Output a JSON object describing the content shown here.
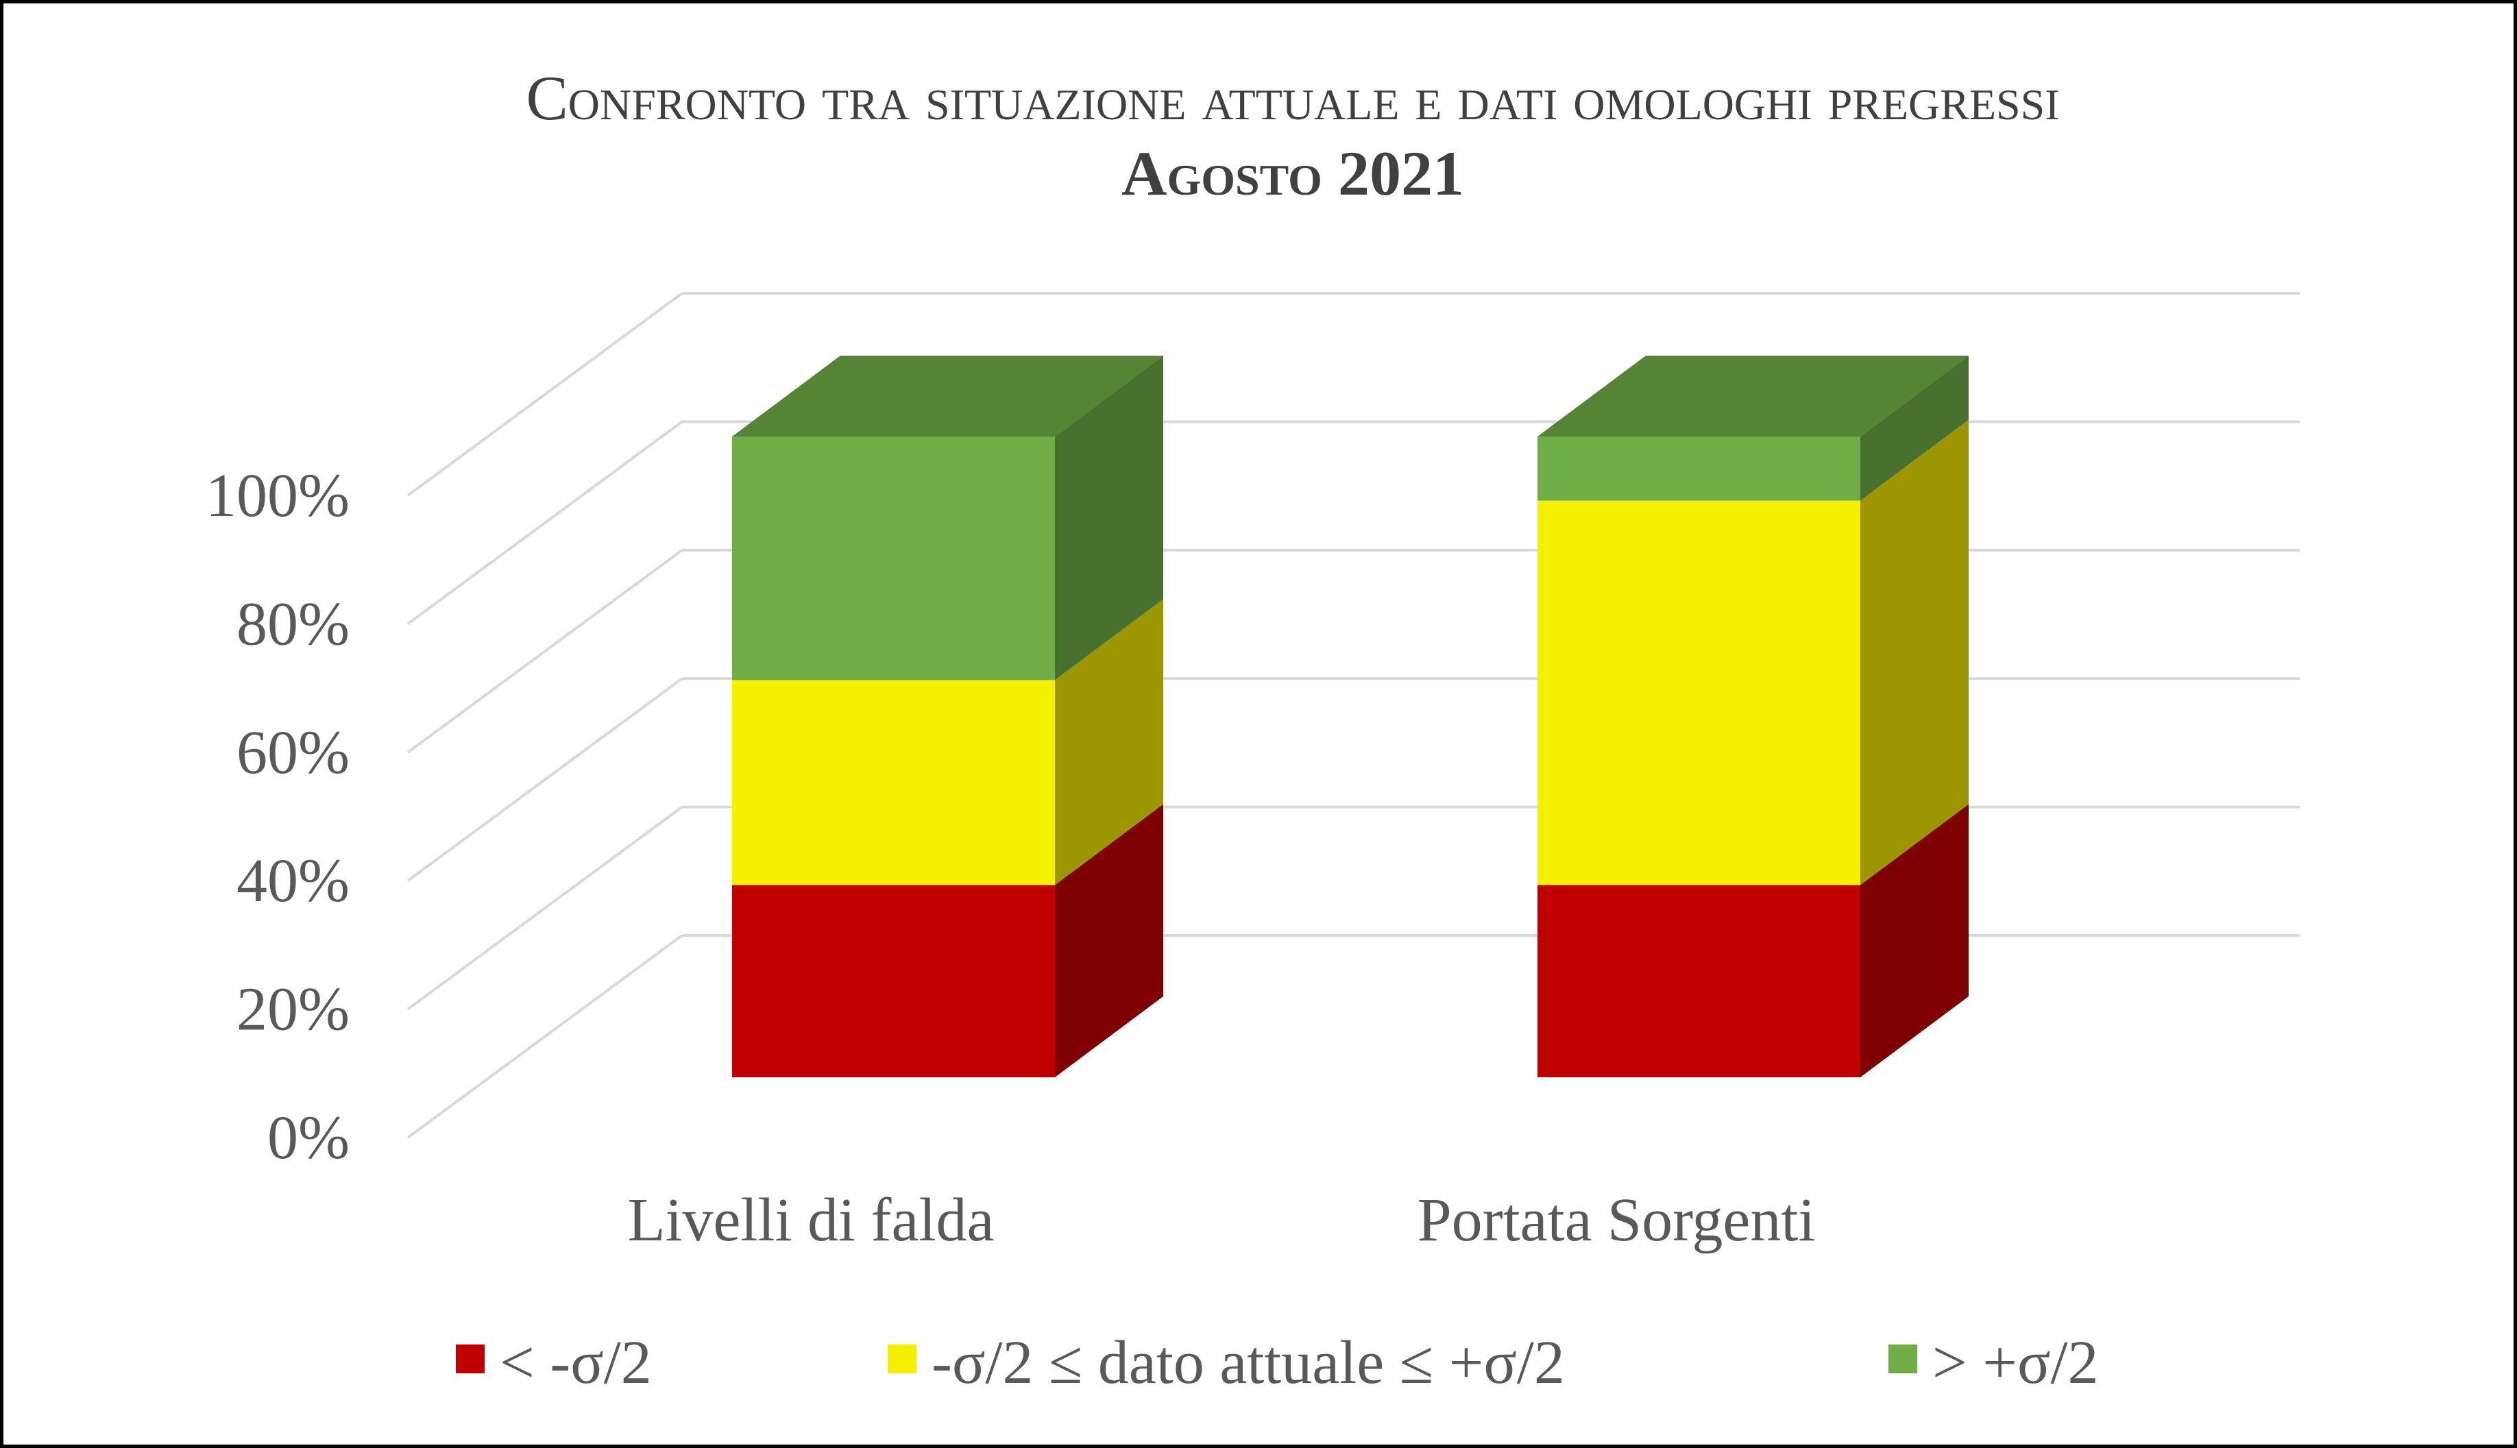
{
  "chart_data": {
    "type": "bar",
    "stacked": true,
    "three_d": true,
    "title": "Confronto tra situazione attuale e dati omologhi pregressi",
    "subtitle": "Agosto 2021",
    "categories": [
      "Livelli di falda",
      "Portata Sorgenti"
    ],
    "series": [
      {
        "name": "< -σ/2",
        "color": "#c00000",
        "side_color": "#7f0000",
        "top_color": "#a00000",
        "values": [
          30,
          30
        ]
      },
      {
        "name": "-σ/2 ≤ dato attuale ≤ +σ/2",
        "color": "#f5f000",
        "side_color": "#9c9700",
        "top_color": "#d8d300",
        "values": [
          32,
          60
        ]
      },
      {
        "name": "> +σ/2",
        "color": "#70ad47",
        "side_color": "#48702e",
        "top_color": "#568435",
        "values": [
          38,
          10
        ]
      }
    ],
    "yticks": [
      "0%",
      "20%",
      "40%",
      "60%",
      "80%",
      "100%"
    ],
    "ylim": [
      0,
      100
    ],
    "grid": true,
    "legend_position": "bottom"
  }
}
